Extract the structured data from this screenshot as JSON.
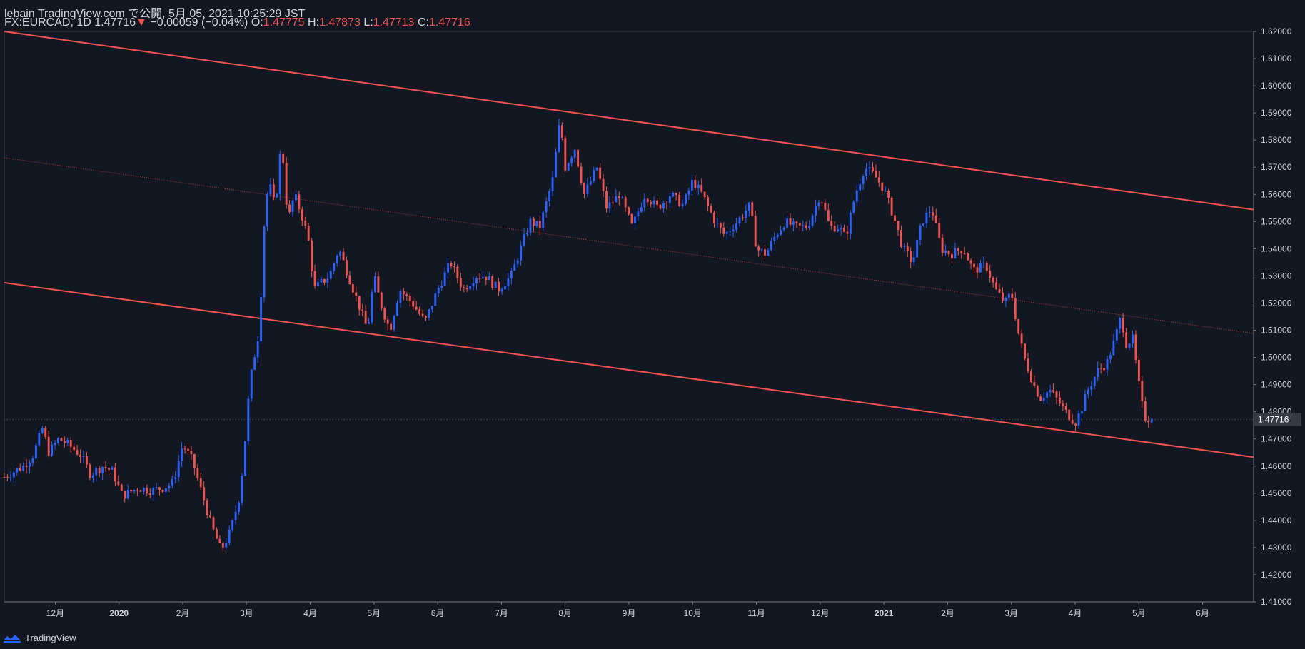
{
  "header": {
    "publish_line": "lebain TradingView.com で公開, 5月 05, 2021 10:25:29 JST",
    "symbol": "FX:EURCAD, 1D",
    "last": "1.47716",
    "change_arrow": "▼",
    "change": "−0.00059 (−0.04%)",
    "o_label": "O:",
    "o": "1.47775",
    "h_label": "H:",
    "h": "1.47873",
    "l_label": "L:",
    "l": "1.47713",
    "c_label": "C:",
    "c": "1.47716"
  },
  "footer": {
    "brand": "TradingView",
    "logo_icon": "tradingview-logo-icon"
  },
  "colors": {
    "background": "#131722",
    "up": "#2962ff",
    "down": "#ef5350",
    "channel": "#f05350",
    "text": "#d1d4dc",
    "axis_line": "#363a45",
    "price_label_bg": "#363a45"
  },
  "chart_data": {
    "type": "candlestick",
    "symbol": "FX:EURCAD",
    "interval": "1D",
    "x_ticks": [
      "12月",
      "2020",
      "2月",
      "3月",
      "4月",
      "5月",
      "6月",
      "7月",
      "8月",
      "9月",
      "10月",
      "11月",
      "12月",
      "2021",
      "2月",
      "3月",
      "4月",
      "5月",
      "6月"
    ],
    "x_tick_positions": [
      0,
      1,
      2,
      3,
      4,
      5,
      6,
      7,
      8,
      9,
      10,
      11,
      12,
      13,
      14,
      15,
      16,
      17,
      18
    ],
    "y_ticks": [
      "1.41000",
      "1.42000",
      "1.43000",
      "1.44000",
      "1.45000",
      "1.46000",
      "1.47000",
      "1.48000",
      "1.49000",
      "1.50000",
      "1.51000",
      "1.52000",
      "1.53000",
      "1.54000",
      "1.55000",
      "1.56000",
      "1.57000",
      "1.58000",
      "1.59000",
      "1.60000",
      "1.61000",
      "1.62000"
    ],
    "ylim": [
      1.41,
      1.62
    ],
    "xlim": [
      -0.8,
      18.8
    ],
    "current_price": 1.47716,
    "current_price_label": "1.47716",
    "price_path": [
      [
        -0.8,
        1.456
      ],
      [
        -0.5,
        1.46
      ],
      [
        -0.35,
        1.464
      ],
      [
        -0.2,
        1.474
      ],
      [
        -0.1,
        1.465
      ],
      [
        0.05,
        1.47
      ],
      [
        0.2,
        1.468
      ],
      [
        0.4,
        1.464
      ],
      [
        0.55,
        1.457
      ],
      [
        0.75,
        1.46
      ],
      [
        0.9,
        1.458
      ],
      [
        1.05,
        1.449
      ],
      [
        1.3,
        1.452
      ],
      [
        1.5,
        1.451
      ],
      [
        1.7,
        1.452
      ],
      [
        1.85,
        1.454
      ],
      [
        2.0,
        1.468
      ],
      [
        2.15,
        1.462
      ],
      [
        2.3,
        1.45
      ],
      [
        2.45,
        1.438
      ],
      [
        2.6,
        1.429
      ],
      [
        2.75,
        1.436
      ],
      [
        2.9,
        1.45
      ],
      [
        2.98,
        1.47
      ],
      [
        3.05,
        1.49
      ],
      [
        3.12,
        1.5
      ],
      [
        3.2,
        1.51
      ],
      [
        3.28,
        1.55
      ],
      [
        3.35,
        1.565
      ],
      [
        3.45,
        1.555
      ],
      [
        3.55,
        1.58
      ],
      [
        3.65,
        1.55
      ],
      [
        3.75,
        1.56
      ],
      [
        3.9,
        1.55
      ],
      [
        4.0,
        1.54
      ],
      [
        4.05,
        1.525
      ],
      [
        4.3,
        1.53
      ],
      [
        4.45,
        1.54
      ],
      [
        4.6,
        1.53
      ],
      [
        4.75,
        1.52
      ],
      [
        4.9,
        1.51
      ],
      [
        5.0,
        1.53
      ],
      [
        5.1,
        1.52
      ],
      [
        5.25,
        1.51
      ],
      [
        5.4,
        1.525
      ],
      [
        5.6,
        1.52
      ],
      [
        5.8,
        1.513
      ],
      [
        6.0,
        1.525
      ],
      [
        6.2,
        1.535
      ],
      [
        6.4,
        1.525
      ],
      [
        6.6,
        1.53
      ],
      [
        6.75,
        1.53
      ],
      [
        6.95,
        1.525
      ],
      [
        7.15,
        1.53
      ],
      [
        7.3,
        1.54
      ],
      [
        7.45,
        1.55
      ],
      [
        7.6,
        1.548
      ],
      [
        7.8,
        1.565
      ],
      [
        7.92,
        1.588
      ],
      [
        8.0,
        1.57
      ],
      [
        8.15,
        1.577
      ],
      [
        8.3,
        1.56
      ],
      [
        8.5,
        1.57
      ],
      [
        8.65,
        1.555
      ],
      [
        8.85,
        1.56
      ],
      [
        9.05,
        1.548
      ],
      [
        9.25,
        1.56
      ],
      [
        9.45,
        1.555
      ],
      [
        9.65,
        1.56
      ],
      [
        9.85,
        1.556
      ],
      [
        10.0,
        1.565
      ],
      [
        10.15,
        1.56
      ],
      [
        10.35,
        1.55
      ],
      [
        10.5,
        1.545
      ],
      [
        10.7,
        1.55
      ],
      [
        10.9,
        1.556
      ],
      [
        11.0,
        1.54
      ],
      [
        11.15,
        1.538
      ],
      [
        11.3,
        1.545
      ],
      [
        11.45,
        1.55
      ],
      [
        11.6,
        1.548
      ],
      [
        11.8,
        1.548
      ],
      [
        12.0,
        1.56
      ],
      [
        12.15,
        1.548
      ],
      [
        12.3,
        1.548
      ],
      [
        12.4,
        1.544
      ],
      [
        12.55,
        1.56
      ],
      [
        12.7,
        1.57
      ],
      [
        12.85,
        1.567
      ],
      [
        13.0,
        1.562
      ],
      [
        13.15,
        1.552
      ],
      [
        13.3,
        1.54
      ],
      [
        13.45,
        1.535
      ],
      [
        13.6,
        1.55
      ],
      [
        13.75,
        1.555
      ],
      [
        13.9,
        1.54
      ],
      [
        14.05,
        1.538
      ],
      [
        14.25,
        1.54
      ],
      [
        14.4,
        1.532
      ],
      [
        14.6,
        1.534
      ],
      [
        14.75,
        1.525
      ],
      [
        14.9,
        1.52
      ],
      [
        15.0,
        1.524
      ],
      [
        15.1,
        1.51
      ],
      [
        15.2,
        1.5
      ],
      [
        15.35,
        1.49
      ],
      [
        15.45,
        1.485
      ],
      [
        15.6,
        1.488
      ],
      [
        15.7,
        1.485
      ],
      [
        15.85,
        1.48
      ],
      [
        16.0,
        1.476
      ],
      [
        16.1,
        1.481
      ],
      [
        16.2,
        1.488
      ],
      [
        16.35,
        1.495
      ],
      [
        16.5,
        1.498
      ],
      [
        16.6,
        1.505
      ],
      [
        16.72,
        1.515
      ],
      [
        16.8,
        1.505
      ],
      [
        16.9,
        1.507
      ],
      [
        17.0,
        1.49
      ],
      [
        17.08,
        1.478
      ],
      [
        17.15,
        1.4775
      ],
      [
        17.2,
        1.4772
      ]
    ],
    "trend_lines": [
      {
        "name": "upper",
        "from": [
          -0.8,
          1.62
        ],
        "to": [
          18.8,
          1.5544
        ],
        "style": "solid"
      },
      {
        "name": "middle",
        "from": [
          -0.8,
          1.5735
        ],
        "to": [
          18.8,
          1.5088
        ],
        "style": "dotted"
      },
      {
        "name": "lower",
        "from": [
          -0.8,
          1.5275
        ],
        "to": [
          18.8,
          1.4633
        ],
        "style": "solid"
      }
    ],
    "grid": false,
    "legend": "none"
  }
}
